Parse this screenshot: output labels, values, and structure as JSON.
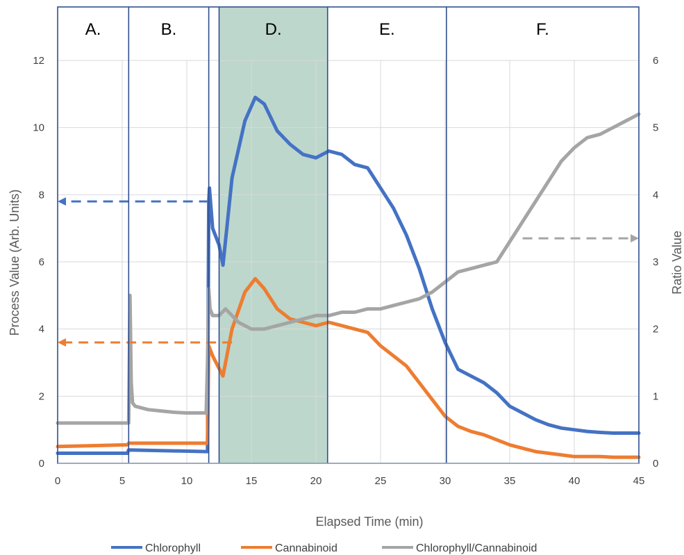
{
  "chart_data": {
    "type": "line",
    "xlabel": "Elapsed Time (min)",
    "ylabel": "Process Value (Arb. Units)",
    "y2label": "Ratio Value",
    "xlim": [
      0,
      45
    ],
    "ylim": [
      0,
      12
    ],
    "y2lim": [
      0,
      6
    ],
    "xticks": [
      0,
      5,
      10,
      15,
      20,
      25,
      30,
      35,
      40,
      45
    ],
    "yticks": [
      0,
      2,
      4,
      6,
      8,
      10,
      12
    ],
    "y2ticks": [
      0,
      1,
      2,
      3,
      4,
      5,
      6
    ],
    "grid": true,
    "legend_position": "bottom",
    "regions": [
      {
        "label": "A.",
        "x0": 0,
        "x1": 5.5
      },
      {
        "label": "B.",
        "x0": 5.5,
        "x1": 11.7
      },
      {
        "label": "",
        "x0": 11.7,
        "x1": 12.5
      },
      {
        "label": "D.",
        "x0": 12.5,
        "x1": 20.9,
        "shaded": true
      },
      {
        "label": "E.",
        "x0": 20.9,
        "x1": 30.1
      },
      {
        "label": "F.",
        "x0": 30.1,
        "x1": 45
      }
    ],
    "region_boundaries": [
      5.5,
      11.7,
      12.5,
      20.9,
      30.1
    ],
    "series": [
      {
        "name": "Chlorophyll",
        "color": "#4472C4",
        "axis": "left",
        "x": [
          0,
          5.4,
          5.5,
          11.5,
          11.6,
          11.7,
          11.75,
          12,
          12.5,
          12.8,
          13.5,
          14.5,
          15.3,
          16,
          17,
          18,
          19,
          20,
          21,
          22,
          23,
          24,
          25,
          26,
          27,
          28,
          29,
          30,
          31,
          32,
          33,
          34,
          35,
          36,
          37,
          38,
          39,
          40,
          41,
          42,
          43,
          44,
          45
        ],
        "values": [
          0.3,
          0.3,
          0.4,
          0.35,
          0.35,
          7.8,
          8.2,
          7.0,
          6.5,
          5.9,
          8.5,
          10.2,
          10.9,
          10.7,
          9.9,
          9.5,
          9.2,
          9.1,
          9.3,
          9.2,
          8.9,
          8.8,
          8.2,
          7.6,
          6.8,
          5.8,
          4.6,
          3.6,
          2.8,
          2.6,
          2.4,
          2.1,
          1.7,
          1.5,
          1.3,
          1.15,
          1.05,
          1.0,
          0.95,
          0.92,
          0.9,
          0.9,
          0.9
        ]
      },
      {
        "name": "Cannabinoid",
        "color": "#ED7D31",
        "axis": "left",
        "x": [
          0,
          5.4,
          5.5,
          11.5,
          11.6,
          11.7,
          12,
          12.8,
          13.5,
          14.5,
          15.3,
          16,
          17,
          18,
          19,
          20,
          21,
          22,
          23,
          24,
          25,
          26,
          27,
          28,
          29,
          30,
          31,
          32,
          33,
          34,
          35,
          36,
          37,
          38,
          39,
          40,
          41,
          42,
          43,
          44,
          45
        ],
        "values": [
          0.5,
          0.55,
          0.6,
          0.6,
          0.6,
          3.5,
          3.2,
          2.6,
          4.0,
          5.1,
          5.5,
          5.2,
          4.6,
          4.3,
          4.2,
          4.1,
          4.2,
          4.1,
          4.0,
          3.9,
          3.5,
          3.2,
          2.9,
          2.4,
          1.9,
          1.4,
          1.1,
          0.95,
          0.85,
          0.7,
          0.55,
          0.45,
          0.35,
          0.3,
          0.25,
          0.2,
          0.2,
          0.2,
          0.18,
          0.18,
          0.18
        ]
      },
      {
        "name": "Chlorophyll/Cannabinoid",
        "color": "#A5A5A5",
        "axis": "right",
        "x": [
          0,
          5.5,
          5.6,
          5.7,
          5.8,
          6.0,
          7,
          8,
          9,
          10,
          11,
          11.5,
          11.6,
          11.7,
          11.8,
          12,
          12.5,
          13,
          13.5,
          14,
          15,
          16,
          17,
          18,
          19,
          20,
          21,
          22,
          23,
          24,
          25,
          26,
          27,
          28,
          29,
          30,
          31,
          32,
          33,
          34,
          35,
          36,
          37,
          38,
          39,
          40,
          41,
          42,
          43,
          44,
          45
        ],
        "values": [
          0.6,
          0.6,
          2.5,
          1.2,
          0.9,
          0.85,
          0.8,
          0.78,
          0.76,
          0.75,
          0.75,
          0.75,
          1.5,
          2.6,
          2.3,
          2.2,
          2.2,
          2.3,
          2.2,
          2.1,
          2.0,
          2.0,
          2.05,
          2.1,
          2.15,
          2.2,
          2.2,
          2.25,
          2.25,
          2.3,
          2.3,
          2.35,
          2.4,
          2.45,
          2.55,
          2.7,
          2.85,
          2.9,
          2.95,
          3.0,
          3.3,
          3.6,
          3.9,
          4.2,
          4.5,
          4.7,
          4.85,
          4.9,
          5.0,
          5.1,
          5.2
        ]
      }
    ],
    "annotations": [
      {
        "type": "arrow",
        "direction": "left",
        "color": "#4472C4",
        "y": 7.8,
        "x_from": 11.7,
        "x_to": 0
      },
      {
        "type": "arrow",
        "direction": "left",
        "color": "#ED7D31",
        "y": 3.6,
        "x_from": 13.5,
        "x_to": 0
      },
      {
        "type": "arrow",
        "direction": "right",
        "color": "#A5A5A5",
        "y_right": 3.35,
        "x_from": 36,
        "x_to": 45
      }
    ]
  }
}
